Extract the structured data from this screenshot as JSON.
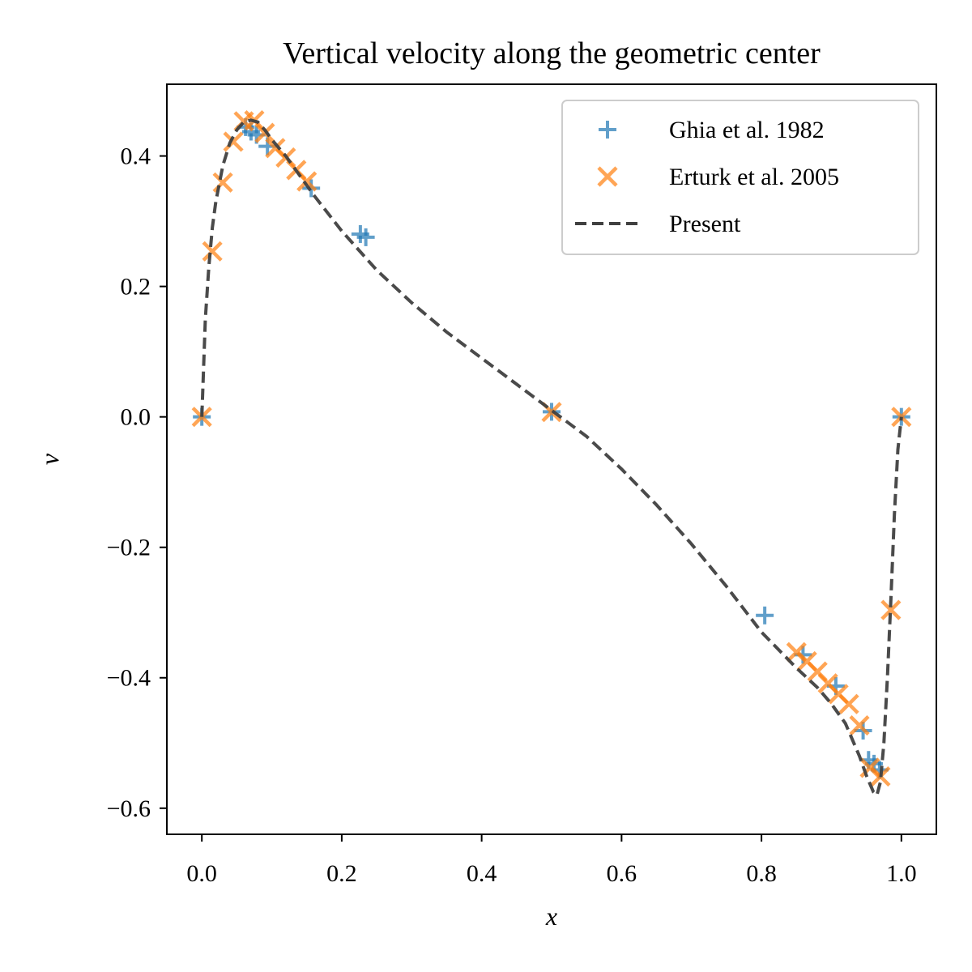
{
  "chart_data": {
    "type": "line",
    "title": "Vertical velocity along the geometric center",
    "xlabel": "x",
    "ylabel": "v",
    "xlim": [
      -0.05,
      1.05
    ],
    "ylim": [
      -0.64,
      0.51
    ],
    "xticks": [
      0.0,
      0.2,
      0.4,
      0.6,
      0.8,
      1.0
    ],
    "xtick_labels": [
      "0.0",
      "0.2",
      "0.4",
      "0.6",
      "0.8",
      "1.0"
    ],
    "yticks": [
      -0.6,
      -0.4,
      -0.2,
      0.0,
      0.2,
      0.4
    ],
    "ytick_labels": [
      "−0.6",
      "−0.4",
      "−0.2",
      "0.0",
      "0.2",
      "0.4"
    ],
    "grid": false,
    "legend_position": "top-right",
    "series": [
      {
        "name": "Ghia et al. 1982",
        "kind": "scatter",
        "marker": "plus",
        "color": "#1f77b4",
        "x": [
          0.0,
          0.0625,
          0.0703,
          0.0781,
          0.0938,
          0.1563,
          0.2266,
          0.2344,
          0.5,
          0.8047,
          0.8594,
          0.9063,
          0.9453,
          0.9531,
          0.9609,
          0.9688,
          1.0
        ],
        "y": [
          0.0,
          0.4443,
          0.4374,
          0.4324,
          0.4149,
          0.3505,
          0.2803,
          0.2754,
          0.0078,
          -0.3044,
          -0.3648,
          -0.4127,
          -0.481,
          -0.526,
          -0.5318,
          -0.5412,
          0.0
        ]
      },
      {
        "name": "Erturk et al. 2005",
        "kind": "scatter",
        "marker": "x",
        "color": "#ff7f0e",
        "x": [
          0.0,
          0.015,
          0.03,
          0.045,
          0.06,
          0.075,
          0.09,
          0.105,
          0.12,
          0.135,
          0.15,
          0.5,
          0.85,
          0.865,
          0.88,
          0.895,
          0.91,
          0.925,
          0.94,
          0.955,
          0.97,
          0.985,
          1.0
        ],
        "y": [
          0.0,
          0.2538,
          0.3593,
          0.4219,
          0.4531,
          0.4547,
          0.4353,
          0.4121,
          0.3976,
          0.3785,
          0.361,
          0.0074,
          -0.3609,
          -0.3748,
          -0.3905,
          -0.4086,
          -0.4249,
          -0.4403,
          -0.473,
          -0.538,
          -0.5513,
          -0.2961,
          0.0
        ]
      },
      {
        "name": "Present",
        "kind": "line",
        "style": "dashed",
        "color": "#404040",
        "x": [
          0.0,
          0.005,
          0.01,
          0.015,
          0.02,
          0.03,
          0.04,
          0.05,
          0.06,
          0.07,
          0.08,
          0.09,
          0.1,
          0.12,
          0.14,
          0.16,
          0.2,
          0.25,
          0.3,
          0.35,
          0.4,
          0.45,
          0.5,
          0.55,
          0.6,
          0.65,
          0.7,
          0.75,
          0.8,
          0.85,
          0.88,
          0.9,
          0.92,
          0.94,
          0.95,
          0.96,
          0.965,
          0.97,
          0.975,
          0.98,
          0.985,
          0.99,
          0.995,
          1.0
        ],
        "y": [
          0.0,
          0.15,
          0.23,
          0.29,
          0.33,
          0.385,
          0.42,
          0.44,
          0.452,
          0.455,
          0.452,
          0.44,
          0.425,
          0.4,
          0.37,
          0.34,
          0.285,
          0.225,
          0.175,
          0.13,
          0.09,
          0.05,
          0.01,
          -0.03,
          -0.08,
          -0.135,
          -0.195,
          -0.26,
          -0.33,
          -0.385,
          -0.415,
          -0.44,
          -0.47,
          -0.52,
          -0.55,
          -0.575,
          -0.58,
          -0.56,
          -0.5,
          -0.4,
          -0.28,
          -0.15,
          -0.05,
          0.0
        ]
      }
    ]
  }
}
